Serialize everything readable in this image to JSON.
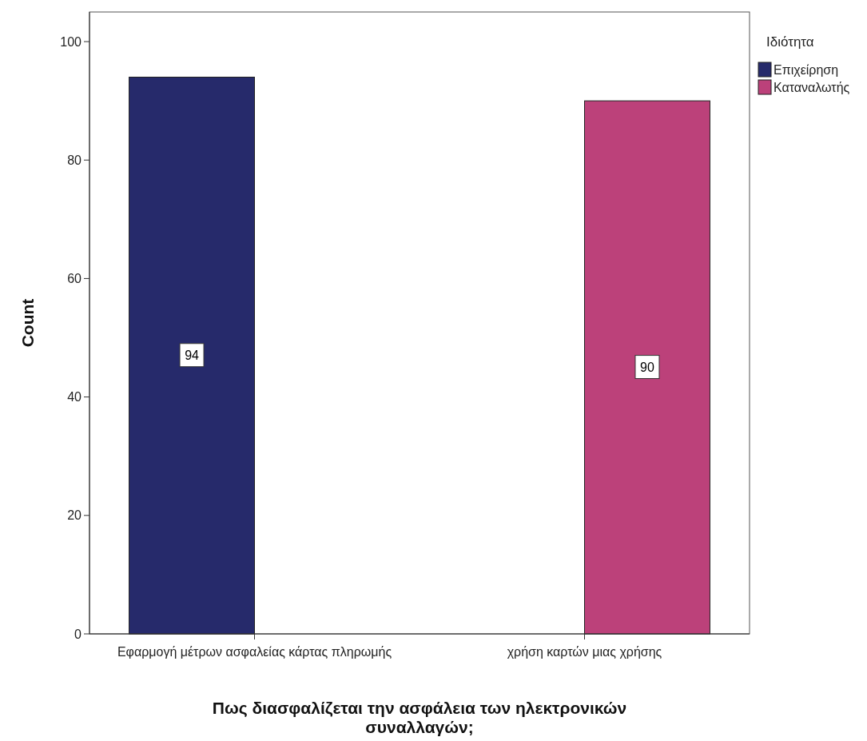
{
  "chart_data": {
    "type": "bar",
    "xlabel": "Πως διασφαλίζεται την ασφάλεια των ηλεκτρονικών συναλλαγών;",
    "ylabel": "Count",
    "legend_title": "Ιδιότητα",
    "legend": "right",
    "categories": [
      "Εφαρμογή μέτρων ασφαλείας κάρτας πληρωμής",
      "χρήση καρτών μιας χρήσης"
    ],
    "series": [
      {
        "name": "Επιχείρηση",
        "color": "#262a6b",
        "values": [
          94,
          null
        ]
      },
      {
        "name": "Καταναλωτής",
        "color": "#bc417a",
        "values": [
          null,
          90
        ]
      }
    ],
    "ylim": [
      0,
      105
    ],
    "yticks": [
      0,
      20,
      40,
      60,
      80,
      100
    ],
    "data_labels": true,
    "grid": false
  }
}
